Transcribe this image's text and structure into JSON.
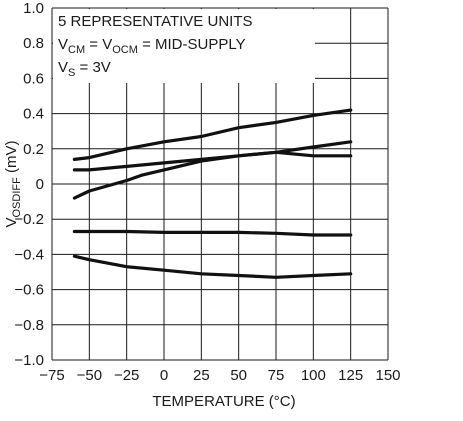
{
  "chart_data": {
    "type": "line",
    "xlabel": "TEMPERATURE (°C)",
    "ylabel": {
      "main": "V",
      "sub": "OSDIFF",
      "unit": " (mV)"
    },
    "xlim": [
      -75,
      150
    ],
    "ylim": [
      -1.0,
      1.0
    ],
    "x_ticks": [
      -75,
      -50,
      -25,
      0,
      25,
      50,
      75,
      100,
      125,
      150
    ],
    "x_tick_labels": [
      "−75",
      "−50",
      "−25",
      "0",
      "25",
      "50",
      "75",
      "100",
      "125",
      "150"
    ],
    "y_ticks": [
      -1.0,
      -0.8,
      -0.6,
      -0.4,
      -0.2,
      0,
      0.2,
      0.4,
      0.6,
      0.8,
      1.0
    ],
    "y_tick_labels": [
      "−1.0",
      "−0.8",
      "−0.6",
      "−0.4",
      "−0.2",
      "0",
      "0.2",
      "0.4",
      "0.6",
      "0.8",
      "1.0"
    ],
    "grid": true,
    "annotation": {
      "line1": "5 REPRESENTATIVE UNITS",
      "line2": {
        "a": "V",
        "a_sub": "CM",
        "b": " = V",
        "b_sub": "OCM",
        "c": " = MID-SUPPLY"
      },
      "line3": {
        "a": "V",
        "a_sub": "S",
        "b": " = 3V"
      }
    },
    "series": [
      {
        "x": [
          -60,
          -50,
          -25,
          0,
          25,
          50,
          75,
          100,
          125
        ],
        "y": [
          0.14,
          0.15,
          0.2,
          0.24,
          0.27,
          0.32,
          0.35,
          0.39,
          0.42
        ]
      },
      {
        "x": [
          -60,
          -50,
          -25,
          0,
          25,
          50,
          75,
          100,
          125
        ],
        "y": [
          0.08,
          0.08,
          0.1,
          0.12,
          0.14,
          0.16,
          0.18,
          0.21,
          0.24
        ]
      },
      {
        "x": [
          -60,
          -50,
          -25,
          -15,
          0,
          25,
          50,
          75,
          100,
          125
        ],
        "y": [
          -0.08,
          -0.04,
          0.02,
          0.05,
          0.08,
          0.13,
          0.16,
          0.18,
          0.16,
          0.16
        ]
      },
      {
        "x": [
          -60,
          -50,
          -25,
          0,
          25,
          50,
          75,
          100,
          125
        ],
        "y": [
          -0.27,
          -0.27,
          -0.27,
          -0.275,
          -0.275,
          -0.275,
          -0.28,
          -0.29,
          -0.29
        ]
      },
      {
        "x": [
          -60,
          -50,
          -25,
          0,
          25,
          50,
          75,
          100,
          125
        ],
        "y": [
          -0.41,
          -0.43,
          -0.47,
          -0.49,
          -0.51,
          -0.52,
          -0.53,
          -0.52,
          -0.51
        ]
      }
    ],
    "colors": {
      "line": "#111111",
      "grid": "#1a1a1a",
      "background": "#ffffff"
    }
  }
}
